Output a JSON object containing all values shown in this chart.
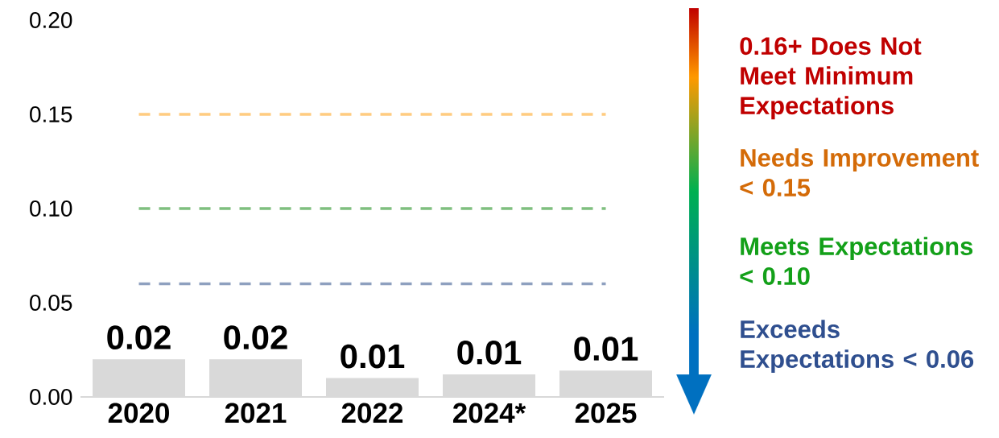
{
  "chart_data": {
    "type": "bar",
    "categories": [
      "2020",
      "2021",
      "2022",
      "2024*",
      "2025"
    ],
    "values": [
      0.02,
      0.02,
      0.01,
      0.012,
      0.014
    ],
    "value_labels": [
      "0.02",
      "0.02",
      "0.01",
      "0.01",
      "0.01"
    ],
    "color": "#d9d9d9",
    "ylim": [
      0,
      0.2
    ],
    "yticks": [
      {
        "value": 0,
        "label": "0.00"
      },
      {
        "value": 0.05,
        "label": "0.05"
      },
      {
        "value": 0.1,
        "label": "0.10"
      },
      {
        "value": 0.15,
        "label": "0.15"
      },
      {
        "value": 0.2,
        "label": "0.20"
      }
    ],
    "ref_lines": [
      {
        "axis": "y",
        "value": 0.15,
        "color": "#ffcc80",
        "line_style": "dashed"
      },
      {
        "axis": "y",
        "value": 0.1,
        "color": "#7fbf7f",
        "line_style": "dashed"
      },
      {
        "axis": "y",
        "value": 0.06,
        "color": "#8ea0bf",
        "line_style": "dashed"
      }
    ],
    "annotations": [
      "0.16+ Does Not Meet Minimum Expectations",
      "Needs Improvement < 0.15",
      "Meets Expectations < 0.10",
      "Exceeds Expectations < 0.06"
    ]
  }
}
